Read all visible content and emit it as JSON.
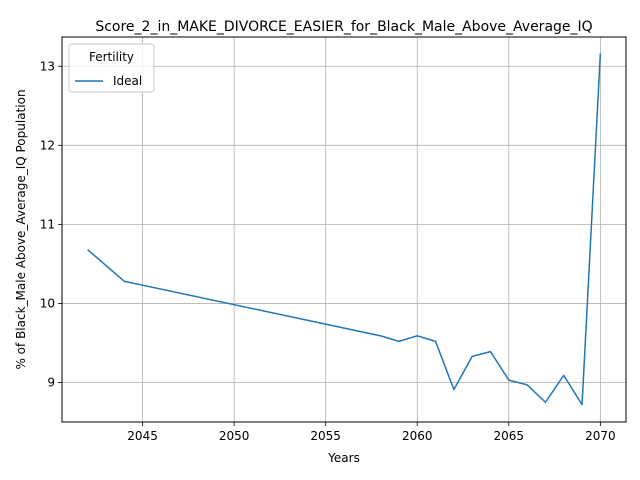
{
  "chart_data": {
    "type": "line",
    "title": "Score_2_in_MAKE_DIVORCE_EASIER_for_Black_Male_Above_Average_IQ",
    "xlabel": "Years",
    "ylabel": "% of Black_Male Above_Average_IQ Population",
    "xlim": [
      2040.6,
      2071.4
    ],
    "ylim": [
      8.5,
      13.37
    ],
    "xticks": [
      2045,
      2050,
      2055,
      2060,
      2065,
      2070
    ],
    "yticks": [
      9,
      10,
      11,
      12,
      13
    ],
    "grid": true,
    "legend": {
      "title": "Fertility",
      "placement": "upper-left"
    },
    "series": [
      {
        "name": "Ideal",
        "color": "#1f77b4",
        "x": [
          2042,
          2044,
          2058,
          2059,
          2060,
          2061,
          2062,
          2063,
          2064,
          2065,
          2066,
          2067,
          2068,
          2069,
          2070
        ],
        "values": [
          10.68,
          10.28,
          9.59,
          9.52,
          9.59,
          9.52,
          8.91,
          9.33,
          9.39,
          9.03,
          8.97,
          8.75,
          9.09,
          8.72,
          13.16
        ]
      }
    ]
  }
}
